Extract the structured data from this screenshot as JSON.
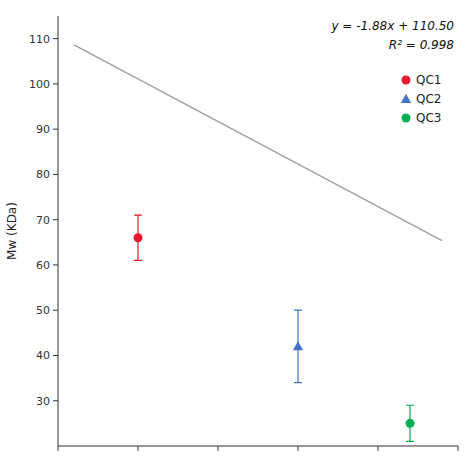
{
  "chart_data": {
    "type": "scatter",
    "ylabel": "Mw (KDa)",
    "xlim": [
      0,
      25
    ],
    "xticks": [
      0,
      5,
      10,
      15,
      20,
      25
    ],
    "ylim": [
      20,
      115
    ],
    "yticks": [
      30,
      40,
      50,
      60,
      70,
      80,
      90,
      100,
      110
    ],
    "tick_labels": "y",
    "grid": false,
    "legend": "right",
    "annotations": [
      "y = -1.88x + 110.50",
      "R² = 0.998"
    ],
    "series": [
      {
        "type": "line",
        "color": "#a0a0a0",
        "x": [
          1,
          24
        ],
        "values": [
          108.62,
          65.38
        ]
      },
      {
        "name": "QC1",
        "color": "#e8192c",
        "marker": "circle",
        "x": [
          5
        ],
        "values": [
          66
        ],
        "errors": [
          5
        ]
      },
      {
        "name": "QC2",
        "color": "#4472c4",
        "marker": "triangle",
        "x": [
          15
        ],
        "values": [
          42
        ],
        "errors": [
          8
        ]
      },
      {
        "name": "QC3",
        "color": "#00b050",
        "marker": "circle",
        "x": [
          22
        ],
        "values": [
          25
        ],
        "errors": [
          4
        ]
      }
    ]
  }
}
